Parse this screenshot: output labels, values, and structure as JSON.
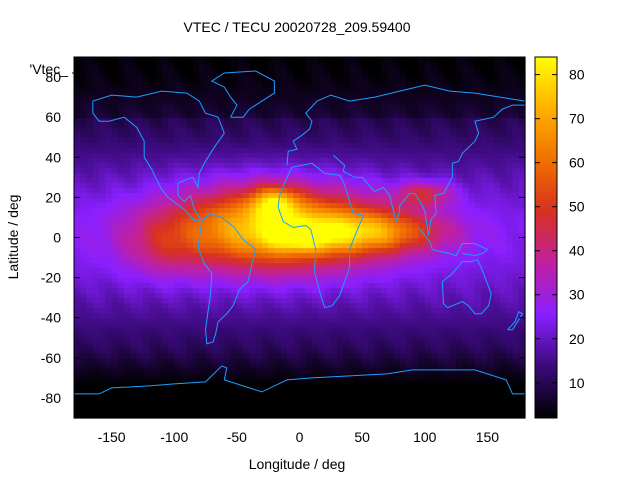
{
  "chart_data": {
    "type": "heatmap",
    "title": "VTEC / TECU 20020728_209.59400",
    "xlabel": "Longitude / deg",
    "ylabel": "Latitude / deg",
    "legend_label": "'Vtec_",
    "xlim": [
      -180,
      180
    ],
    "ylim": [
      -90,
      90
    ],
    "xticks": [
      -150,
      -100,
      -50,
      0,
      50,
      100,
      150
    ],
    "yticks": [
      -80,
      -60,
      -40,
      -20,
      0,
      20,
      40,
      60,
      80
    ],
    "colorbar": {
      "range": [
        2,
        84
      ],
      "ticks": [
        10,
        20,
        30,
        40,
        50,
        60,
        70,
        80
      ],
      "palette": [
        "#000000",
        "#3a0a7a",
        "#8a1fff",
        "#c020a0",
        "#d83020",
        "#f07000",
        "#ffb000",
        "#ffff00"
      ]
    },
    "grid": {
      "dlon": 5,
      "dlat": 2.5
    },
    "features": [
      {
        "lon": -20,
        "lat": 5,
        "peak": 55,
        "width_lon": 85,
        "width_lat": 20
      },
      {
        "lon": -20,
        "lat": 18,
        "peak": 28,
        "width_lon": 18,
        "width_lat": 8
      },
      {
        "lon": 0,
        "lat": 0,
        "peak": 15,
        "width_lon": 25,
        "width_lat": 6
      },
      {
        "lon": 60,
        "lat": 3,
        "peak": 30,
        "width_lon": 55,
        "width_lat": 10
      },
      {
        "lon": 100,
        "lat": 22,
        "peak": 22,
        "width_lon": 22,
        "width_lat": 6
      },
      {
        "lon": -110,
        "lat": -5,
        "peak": 10,
        "width_lon": 30,
        "width_lat": 15
      }
    ],
    "base_level": {
      "equator": 24,
      "south_polar_min": 3
    }
  }
}
